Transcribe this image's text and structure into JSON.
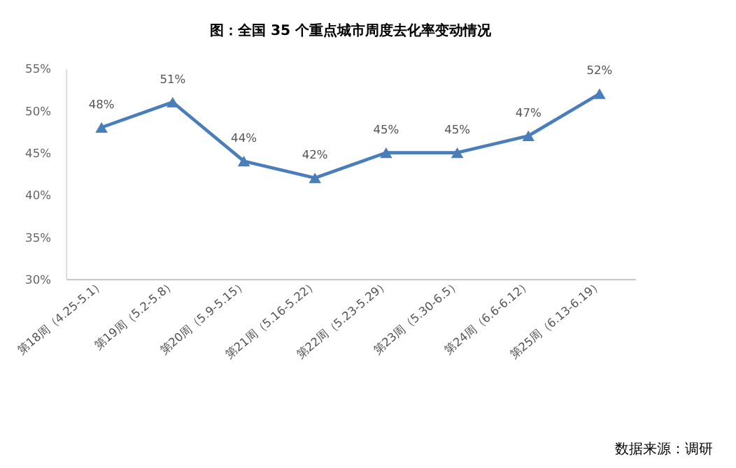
{
  "chart_data": {
    "type": "line",
    "title": "图：全国 35 个重点城市周度去化率变动情况",
    "categories": [
      "第18周（4.25-5.1）",
      "第19周（5.2-5.8）",
      "第20周（5.9-5.15）",
      "第21周（5.16-5.22）",
      "第22周（5.23-5.29）",
      "第23周（5.30-6.5）",
      "第24周（6.6-6.12）",
      "第25周（6.13-6.19）"
    ],
    "series": [
      {
        "color": "#4a7ebb",
        "values": [
          48,
          51,
          44,
          42,
          45,
          45,
          47,
          52
        ],
        "value_labels": [
          "48%",
          "51%",
          "44%",
          "42%",
          "45%",
          "45%",
          "47%",
          "52%"
        ]
      }
    ],
    "ylim": [
      30,
      55
    ],
    "yticks": [
      {
        "value": 30,
        "label": "30%"
      },
      {
        "value": 35,
        "label": "35%"
      },
      {
        "value": 40,
        "label": "40%"
      },
      {
        "value": 45,
        "label": "45%"
      },
      {
        "value": 50,
        "label": "50%"
      },
      {
        "value": 55,
        "label": "55%"
      }
    ],
    "marker": "triangle",
    "line_style": "solid",
    "grid": false,
    "legend": false,
    "annotations": [
      "数据来源：调研"
    ]
  }
}
